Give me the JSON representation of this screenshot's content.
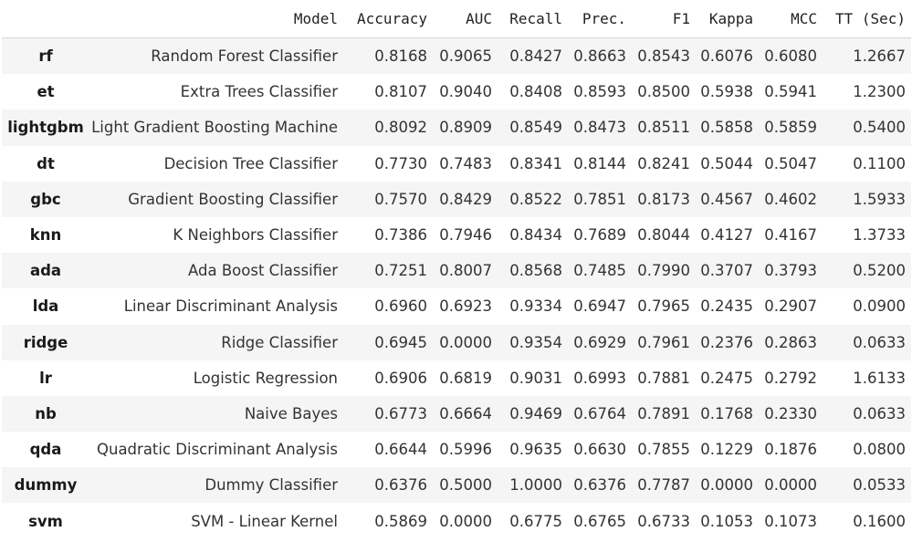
{
  "table": {
    "columns": [
      "",
      "Model",
      "Accuracy",
      "AUC",
      "Recall",
      "Prec.",
      "F1",
      "Kappa",
      "MCC",
      "TT (Sec)"
    ],
    "rows": [
      {
        "id": "rf",
        "model": "Random Forest Classifier",
        "accuracy": "0.8168",
        "auc": "0.9065",
        "recall": "0.8427",
        "prec": "0.8663",
        "f1": "0.8543",
        "kappa": "0.6076",
        "mcc": "0.6080",
        "tt": "1.2667"
      },
      {
        "id": "et",
        "model": "Extra Trees Classifier",
        "accuracy": "0.8107",
        "auc": "0.9040",
        "recall": "0.8408",
        "prec": "0.8593",
        "f1": "0.8500",
        "kappa": "0.5938",
        "mcc": "0.5941",
        "tt": "1.2300"
      },
      {
        "id": "lightgbm",
        "model": "Light Gradient Boosting Machine",
        "accuracy": "0.8092",
        "auc": "0.8909",
        "recall": "0.8549",
        "prec": "0.8473",
        "f1": "0.8511",
        "kappa": "0.5858",
        "mcc": "0.5859",
        "tt": "0.5400"
      },
      {
        "id": "dt",
        "model": "Decision Tree Classifier",
        "accuracy": "0.7730",
        "auc": "0.7483",
        "recall": "0.8341",
        "prec": "0.8144",
        "f1": "0.8241",
        "kappa": "0.5044",
        "mcc": "0.5047",
        "tt": "0.1100"
      },
      {
        "id": "gbc",
        "model": "Gradient Boosting Classifier",
        "accuracy": "0.7570",
        "auc": "0.8429",
        "recall": "0.8522",
        "prec": "0.7851",
        "f1": "0.8173",
        "kappa": "0.4567",
        "mcc": "0.4602",
        "tt": "1.5933"
      },
      {
        "id": "knn",
        "model": "K Neighbors Classifier",
        "accuracy": "0.7386",
        "auc": "0.7946",
        "recall": "0.8434",
        "prec": "0.7689",
        "f1": "0.8044",
        "kappa": "0.4127",
        "mcc": "0.4167",
        "tt": "1.3733"
      },
      {
        "id": "ada",
        "model": "Ada Boost Classifier",
        "accuracy": "0.7251",
        "auc": "0.8007",
        "recall": "0.8568",
        "prec": "0.7485",
        "f1": "0.7990",
        "kappa": "0.3707",
        "mcc": "0.3793",
        "tt": "0.5200"
      },
      {
        "id": "lda",
        "model": "Linear Discriminant Analysis",
        "accuracy": "0.6960",
        "auc": "0.6923",
        "recall": "0.9334",
        "prec": "0.6947",
        "f1": "0.7965",
        "kappa": "0.2435",
        "mcc": "0.2907",
        "tt": "0.0900"
      },
      {
        "id": "ridge",
        "model": "Ridge Classifier",
        "accuracy": "0.6945",
        "auc": "0.0000",
        "recall": "0.9354",
        "prec": "0.6929",
        "f1": "0.7961",
        "kappa": "0.2376",
        "mcc": "0.2863",
        "tt": "0.0633"
      },
      {
        "id": "lr",
        "model": "Logistic Regression",
        "accuracy": "0.6906",
        "auc": "0.6819",
        "recall": "0.9031",
        "prec": "0.6993",
        "f1": "0.7881",
        "kappa": "0.2475",
        "mcc": "0.2792",
        "tt": "1.6133"
      },
      {
        "id": "nb",
        "model": "Naive Bayes",
        "accuracy": "0.6773",
        "auc": "0.6664",
        "recall": "0.9469",
        "prec": "0.6764",
        "f1": "0.7891",
        "kappa": "0.1768",
        "mcc": "0.2330",
        "tt": "0.0633"
      },
      {
        "id": "qda",
        "model": "Quadratic Discriminant Analysis",
        "accuracy": "0.6644",
        "auc": "0.5996",
        "recall": "0.9635",
        "prec": "0.6630",
        "f1": "0.7855",
        "kappa": "0.1229",
        "mcc": "0.1876",
        "tt": "0.0800"
      },
      {
        "id": "dummy",
        "model": "Dummy Classifier",
        "accuracy": "0.6376",
        "auc": "0.5000",
        "recall": "1.0000",
        "prec": "0.6376",
        "f1": "0.7787",
        "kappa": "0.0000",
        "mcc": "0.0000",
        "tt": "0.0533"
      },
      {
        "id": "svm",
        "model": "SVM - Linear Kernel",
        "accuracy": "0.5869",
        "auc": "0.0000",
        "recall": "0.6775",
        "prec": "0.6765",
        "f1": "0.6733",
        "kappa": "0.1053",
        "mcc": "0.1073",
        "tt": "0.1600"
      }
    ]
  }
}
